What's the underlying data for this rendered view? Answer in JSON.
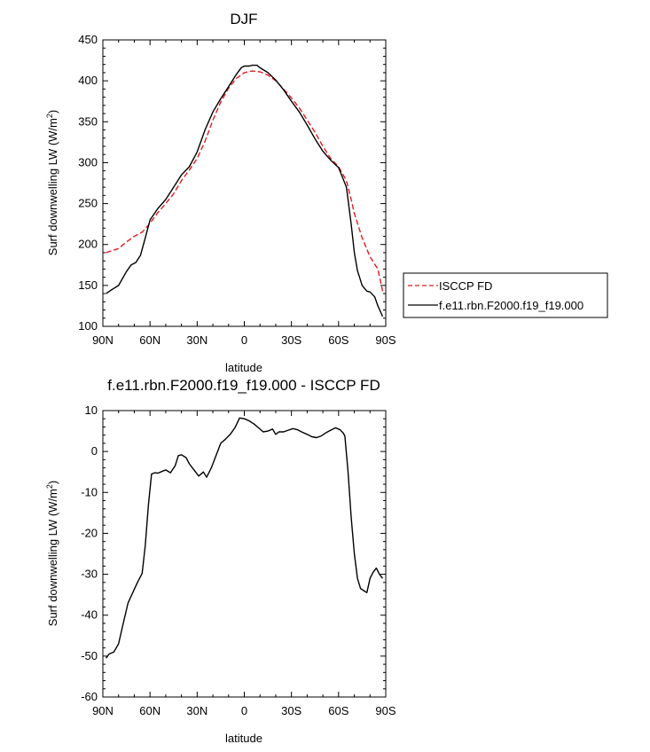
{
  "chart_data": [
    {
      "type": "line",
      "title": "DJF",
      "xlabel": "latitude",
      "ylabel": "Surf downwelling LW (W/m²)",
      "xlim": [
        -90,
        90
      ],
      "ylim": [
        100,
        450
      ],
      "xticks": [
        -90,
        -60,
        -30,
        0,
        30,
        60,
        90
      ],
      "xtick_labels": [
        "90N",
        "60N",
        "30N",
        "0",
        "30S",
        "60S",
        "90S"
      ],
      "yticks": [
        100,
        150,
        200,
        250,
        300,
        350,
        400,
        450
      ],
      "ytick_labels": [
        "100",
        "150",
        "200",
        "250",
        "300",
        "350",
        "400",
        "450"
      ],
      "legend_position": "right",
      "series": [
        {
          "name": "ISCCP FD",
          "color": "#e41a1c",
          "dash": "dashed",
          "x": [
            -88,
            -80,
            -75,
            -70,
            -65,
            -60,
            -55,
            -50,
            -45,
            -40,
            -35,
            -30,
            -25,
            -20,
            -15,
            -10,
            -5,
            0,
            5,
            10,
            15,
            20,
            25,
            30,
            35,
            40,
            45,
            50,
            55,
            60,
            65,
            68,
            70,
            75,
            80,
            85,
            88
          ],
          "y": [
            190,
            195,
            203,
            210,
            215,
            226,
            239,
            250,
            262,
            278,
            291,
            305,
            326,
            352,
            374,
            391,
            403,
            410,
            412,
            411,
            407,
            400,
            390,
            379,
            367,
            352,
            337,
            320,
            305,
            295,
            278,
            255,
            238,
            208,
            185,
            170,
            143
          ]
        },
        {
          "name": "f.e11.rbn.F2000.f19_f19.000",
          "color": "#000000",
          "dash": "solid",
          "x": [
            -88,
            -85,
            -80,
            -75,
            -72,
            -69,
            -66,
            -63,
            -60,
            -55,
            -50,
            -45,
            -40,
            -35,
            -30,
            -25,
            -20,
            -15,
            -10,
            -5,
            -2,
            0,
            3,
            5,
            8,
            10,
            15,
            20,
            25,
            30,
            35,
            40,
            45,
            50,
            55,
            60,
            65,
            68,
            70,
            72,
            75,
            78,
            80,
            83,
            85,
            88
          ],
          "y": [
            140,
            144,
            150,
            167,
            175,
            178,
            187,
            208,
            230,
            244,
            255,
            270,
            285,
            295,
            313,
            340,
            362,
            378,
            393,
            408,
            416,
            418,
            418,
            419,
            419,
            416,
            410,
            401,
            389,
            375,
            362,
            346,
            329,
            314,
            303,
            294,
            270,
            225,
            190,
            168,
            150,
            143,
            142,
            136,
            125,
            112
          ]
        }
      ]
    },
    {
      "type": "line",
      "title": "f.e11.rbn.F2000.f19_f19.000 - ISCCP FD",
      "xlabel": "latitude",
      "ylabel": "Surf downwelling LW (W/m²)",
      "xlim": [
        -90,
        90
      ],
      "ylim": [
        -60,
        10
      ],
      "xticks": [
        -90,
        -60,
        -30,
        0,
        30,
        60,
        90
      ],
      "xtick_labels": [
        "90N",
        "60N",
        "30N",
        "0",
        "30S",
        "60S",
        "90S"
      ],
      "yticks": [
        -60,
        -50,
        -40,
        -30,
        -20,
        -10,
        0,
        10
      ],
      "ytick_labels": [
        "-60",
        "-50",
        "-40",
        "-30",
        "-20",
        "-10",
        "0",
        "10"
      ],
      "series": [
        {
          "color": "#000000",
          "dash": "solid",
          "x": [
            -88,
            -86,
            -83,
            -80,
            -77,
            -74,
            -71,
            -68,
            -65,
            -63,
            -61,
            -59,
            -57,
            -55,
            -52,
            -50,
            -47,
            -44,
            -42,
            -40,
            -37,
            -35,
            -32,
            -29,
            -26,
            -24,
            -21,
            -18,
            -15,
            -12,
            -9,
            -6,
            -3,
            0,
            3,
            6,
            9,
            12,
            15,
            18,
            20,
            22,
            25,
            28,
            31,
            34,
            37,
            40,
            43,
            46,
            49,
            52,
            55,
            58,
            61,
            63,
            64,
            66,
            68,
            70,
            72,
            74,
            76,
            78,
            80,
            82,
            84,
            86,
            88
          ],
          "y": [
            -50.5,
            -49.5,
            -49,
            -47,
            -42,
            -37,
            -34.5,
            -32,
            -29.8,
            -23,
            -13,
            -5.5,
            -5.2,
            -5.3,
            -4.8,
            -4.5,
            -5.2,
            -3.5,
            -1,
            -0.8,
            -1.5,
            -3,
            -4.5,
            -6,
            -5,
            -6.3,
            -4,
            -1,
            2,
            3,
            4.2,
            5.8,
            8.2,
            8,
            7.5,
            6.8,
            5.8,
            4.8,
            5,
            5.5,
            4.2,
            4.8,
            4.8,
            5.2,
            5.6,
            5.3,
            4.7,
            4.2,
            3.6,
            3.4,
            3.8,
            4.6,
            5.2,
            5.8,
            5.3,
            4.5,
            3.8,
            -5,
            -16,
            -25,
            -31,
            -33.5,
            -34,
            -34.5,
            -31,
            -29.5,
            -28.5,
            -30,
            -31
          ]
        }
      ]
    }
  ]
}
